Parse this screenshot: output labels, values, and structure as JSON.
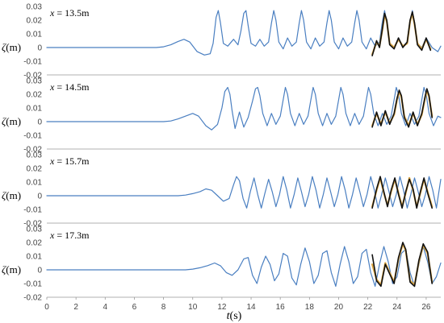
{
  "chart_data": {
    "type": "line",
    "xlabel_main": "t",
    "xlabel_unit": "(s)",
    "ylabel_main": "ζ",
    "ylabel_unit": "(m)",
    "xlim": [
      0,
      27
    ],
    "xticks": [
      0,
      2,
      4,
      6,
      8,
      10,
      12,
      14,
      16,
      18,
      20,
      22,
      24,
      26
    ],
    "xtick_labels": [
      "0",
      "2",
      "4",
      "6",
      "8",
      "10",
      "12",
      "14",
      "16",
      "18",
      "20",
      "22",
      "24",
      "26"
    ],
    "ylim": [
      -0.02,
      0.03
    ],
    "yticks": [
      -0.02,
      -0.01,
      0,
      0.01,
      0.02,
      0.03
    ],
    "ytick_labels": [
      "-0.02",
      "-0.01",
      "0",
      "0.01",
      "0.02",
      "0.03"
    ],
    "colors": {
      "simulation": "#4a7fc1",
      "overlay_light": "#d9a441",
      "overlay_dark": "#111111",
      "axis": "#999999"
    },
    "panels": [
      {
        "label_var": "x",
        "label_value": "= 13.5m",
        "series": [
          {
            "role": "simulation",
            "x": [
              0,
              7.5,
              8,
              8.5,
              9,
              9.4,
              9.8,
              10.3,
              10.8,
              11.2,
              11.4,
              11.6,
              11.75,
              11.9,
              12.1,
              12.4,
              12.8,
              13.1,
              13.3,
              13.5,
              13.65,
              13.8,
              14,
              14.3,
              14.6,
              14.9,
              15.2,
              15.4,
              15.55,
              15.7,
              15.9,
              16.2,
              16.5,
              16.8,
              17.1,
              17.3,
              17.45,
              17.6,
              17.8,
              18.1,
              18.4,
              18.7,
              19,
              19.2,
              19.35,
              19.5,
              19.7,
              20,
              20.3,
              20.6,
              20.9,
              21.1,
              21.25,
              21.4,
              21.6,
              21.9,
              22.2,
              22.5,
              22.8,
              23,
              23.15,
              23.3,
              23.5,
              23.8,
              24.1,
              24.4,
              24.7,
              24.9,
              25.05,
              25.2,
              25.4,
              25.7,
              26,
              26.4,
              26.8,
              27
            ],
            "y": [
              0,
              0,
              0.0005,
              0.002,
              0.0045,
              0.006,
              0.004,
              -0.003,
              -0.0055,
              -0.0045,
              0.003,
              0.022,
              0.027,
              0.018,
              0.003,
              0.001,
              0.006,
              0.002,
              0.012,
              0.025,
              0.027,
              0.016,
              0.003,
              0.001,
              0.006,
              0.001,
              0.004,
              0.018,
              0.027,
              0.02,
              0.004,
              -0.001,
              0.007,
              0.001,
              0.004,
              0.018,
              0.027,
              0.02,
              0.004,
              -0.001,
              0.007,
              0.001,
              0.004,
              0.018,
              0.027,
              0.02,
              0.004,
              -0.001,
              0.007,
              0.001,
              0.004,
              0.018,
              0.027,
              0.02,
              0.004,
              -0.001,
              0.007,
              0.001,
              0.004,
              0.019,
              0.027,
              0.018,
              0.003,
              0,
              0.007,
              0.001,
              0.004,
              0.019,
              0.027,
              0.018,
              0.003,
              0,
              0.007,
              0,
              -0.003,
              0.001
            ]
          },
          {
            "role": "overlay_light",
            "x": [
              22.3,
              22.6,
              22.8,
              23,
              23.15,
              23.3,
              23.5,
              23.8,
              24.1,
              24.4,
              24.7,
              24.9,
              25.05,
              25.2,
              25.4,
              25.7,
              26,
              26.3
            ],
            "y": [
              -0.005,
              0.004,
              0.001,
              0.013,
              0.024,
              0.019,
              0.003,
              0,
              0.006,
              0.001,
              0.003,
              0.019,
              0.025,
              0.017,
              0.003,
              -0.001,
              0.006,
              -0.001
            ]
          },
          {
            "role": "overlay_dark",
            "x": [
              22.3,
              22.6,
              22.8,
              23,
              23.15,
              23.3,
              23.5,
              23.8,
              24.1,
              24.4,
              24.7,
              24.9,
              25.05,
              25.2,
              25.4,
              25.7,
              26,
              26.3
            ],
            "y": [
              -0.006,
              0.005,
              0,
              0.014,
              0.025,
              0.02,
              0.002,
              -0.001,
              0.007,
              0,
              0.004,
              0.02,
              0.026,
              0.018,
              0.002,
              -0.002,
              0.007,
              -0.002
            ]
          }
        ]
      },
      {
        "label_var": "x",
        "label_value": "= 14.5m",
        "series": [
          {
            "role": "simulation",
            "x": [
              0,
              8,
              8.5,
              9,
              9.5,
              10,
              10.4,
              10.9,
              11.3,
              11.7,
              12,
              12.2,
              12.4,
              12.55,
              12.7,
              12.9,
              13.2,
              13.5,
              13.8,
              14.1,
              14.3,
              14.45,
              14.6,
              14.8,
              15.1,
              15.4,
              15.7,
              16,
              16.2,
              16.35,
              16.5,
              16.7,
              17,
              17.3,
              17.6,
              17.9,
              18.1,
              18.25,
              18.4,
              18.6,
              18.9,
              19.2,
              19.5,
              19.8,
              20,
              20.15,
              20.3,
              20.5,
              20.8,
              21.1,
              21.4,
              21.7,
              21.9,
              22.05,
              22.2,
              22.4,
              22.7,
              23,
              23.3,
              23.6,
              23.8,
              23.95,
              24.1,
              24.3,
              24.6,
              24.9,
              25.2,
              25.5,
              25.7,
              25.85,
              26,
              26.2,
              26.5,
              26.8,
              27
            ],
            "y": [
              0,
              0,
              0.0005,
              0.002,
              0.004,
              0.006,
              0.004,
              -0.003,
              -0.006,
              -0.002,
              0.01,
              0.022,
              0.025,
              0.02,
              0.008,
              -0.005,
              0.007,
              -0.004,
              0.003,
              0.015,
              0.024,
              0.025,
              0.019,
              0.006,
              -0.003,
              0.006,
              -0.002,
              0.004,
              0.016,
              0.025,
              0.02,
              0.006,
              -0.003,
              0.006,
              -0.002,
              0.004,
              0.016,
              0.025,
              0.02,
              0.006,
              -0.003,
              0.006,
              -0.002,
              0.004,
              0.016,
              0.025,
              0.02,
              0.006,
              -0.003,
              0.006,
              -0.002,
              0.004,
              0.016,
              0.025,
              0.02,
              0.006,
              -0.003,
              0.006,
              -0.002,
              0.004,
              0.016,
              0.025,
              0.02,
              0.006,
              -0.003,
              0.006,
              -0.002,
              0.004,
              0.016,
              0.025,
              0.02,
              0.006,
              -0.003,
              0.004,
              0.003
            ]
          },
          {
            "role": "overlay_light",
            "x": [
              22.3,
              22.6,
              22.9,
              23.2,
              23.5,
              23.8,
              24,
              24.15,
              24.3,
              24.5,
              24.8,
              25.1,
              25.4,
              25.7,
              25.9,
              26.05,
              26.2,
              26.4
            ],
            "y": [
              -0.003,
              0.006,
              -0.002,
              0.007,
              -0.001,
              0.005,
              0.016,
              0.022,
              0.018,
              0.004,
              -0.003,
              0.006,
              -0.002,
              0.005,
              0.016,
              0.023,
              0.018,
              0.004
            ]
          },
          {
            "role": "overlay_dark",
            "x": [
              22.3,
              22.6,
              22.9,
              23.2,
              23.5,
              23.8,
              24,
              24.15,
              24.3,
              24.5,
              24.8,
              25.1,
              25.4,
              25.7,
              25.9,
              26.05,
              26.2,
              26.4
            ],
            "y": [
              -0.004,
              0.007,
              -0.003,
              0.008,
              -0.002,
              0.006,
              0.017,
              0.023,
              0.019,
              0.003,
              -0.004,
              0.007,
              -0.003,
              0.006,
              0.017,
              0.024,
              0.019,
              0.003
            ]
          }
        ]
      },
      {
        "label_var": "x",
        "label_value": "= 15.7m",
        "series": [
          {
            "role": "simulation",
            "x": [
              0,
              9,
              9.5,
              10,
              10.5,
              10.9,
              11.3,
              11.7,
              12.1,
              12.5,
              12.8,
              13,
              13.2,
              13.45,
              13.7,
              13.95,
              14.2,
              14.45,
              14.7,
              14.95,
              15.2,
              15.45,
              15.7,
              15.95,
              16.2,
              16.45,
              16.7,
              16.95,
              17.2,
              17.45,
              17.7,
              17.95,
              18.2,
              18.45,
              18.7,
              18.95,
              19.2,
              19.45,
              19.7,
              19.95,
              20.2,
              20.45,
              20.7,
              20.95,
              21.2,
              21.45,
              21.7,
              21.95,
              22.2,
              22.45,
              22.7,
              22.95,
              23.2,
              23.45,
              23.7,
              23.95,
              24.2,
              24.45,
              24.7,
              24.95,
              25.2,
              25.45,
              25.7,
              25.95,
              26.2,
              26.45,
              26.7,
              27
            ],
            "y": [
              0,
              0,
              0.0005,
              0.0015,
              0.003,
              0.005,
              0.004,
              0,
              -0.004,
              -0.002,
              0.008,
              0.014,
              0.011,
              -0.002,
              -0.009,
              0.003,
              0.013,
              0.001,
              -0.009,
              0.002,
              0.012,
              0.003,
              -0.008,
              0.001,
              0.014,
              0.004,
              -0.009,
              0.001,
              0.013,
              0.003,
              -0.008,
              0.001,
              0.014,
              0.004,
              -0.009,
              0.001,
              0.013,
              0.003,
              -0.008,
              0.001,
              0.014,
              0.004,
              -0.009,
              0.001,
              0.013,
              0.003,
              -0.008,
              0.001,
              0.014,
              0.004,
              -0.009,
              0.001,
              0.013,
              0.003,
              -0.008,
              0.001,
              0.014,
              0.004,
              -0.009,
              0.001,
              0.013,
              0.003,
              -0.008,
              0.001,
              0.014,
              0.004,
              -0.009,
              0.012
            ]
          },
          {
            "role": "overlay_light",
            "x": [
              22.3,
              22.6,
              22.85,
              23.1,
              23.35,
              23.6,
              23.85,
              24.1,
              24.35,
              24.6,
              24.85,
              25.1,
              25.35,
              25.6,
              25.85,
              26.1,
              26.4
            ],
            "y": [
              -0.008,
              0.004,
              0.013,
              0.002,
              -0.007,
              0.003,
              0.012,
              0.002,
              -0.008,
              0.002,
              0.013,
              0.004,
              -0.008,
              0.002,
              0.012,
              0.003,
              -0.008
            ]
          },
          {
            "role": "overlay_dark",
            "x": [
              22.3,
              22.6,
              22.85,
              23.1,
              23.35,
              23.6,
              23.85,
              24.1,
              24.35,
              24.6,
              24.85,
              25.1,
              25.35,
              25.6,
              25.85,
              26.1,
              26.4
            ],
            "y": [
              -0.009,
              0.005,
              0.014,
              0.003,
              -0.008,
              0.004,
              0.013,
              0.001,
              -0.009,
              0.003,
              0.012,
              0.005,
              -0.009,
              0.003,
              0.013,
              0.002,
              -0.009
            ]
          }
        ]
      },
      {
        "label_var": "x",
        "label_value": "= 17.3m",
        "series": [
          {
            "role": "simulation",
            "x": [
              0,
              9.5,
              10,
              10.5,
              11,
              11.5,
              11.9,
              12.3,
              12.7,
              13.1,
              13.5,
              13.8,
              14.1,
              14.4,
              14.7,
              15,
              15.3,
              15.6,
              15.9,
              16.2,
              16.5,
              16.8,
              17.1,
              17.4,
              17.7,
              18,
              18.3,
              18.6,
              18.9,
              19.2,
              19.5,
              19.8,
              20.1,
              20.4,
              20.7,
              21,
              21.3,
              21.6,
              21.9,
              22.2,
              22.5,
              22.8,
              23.1,
              23.4,
              23.7,
              24,
              24.3,
              24.6,
              24.9,
              25.2,
              25.5,
              25.8,
              26.1,
              26.4,
              26.7,
              27
            ],
            "y": [
              0,
              0,
              0.0005,
              0.0015,
              0.003,
              0.005,
              0.003,
              -0.002,
              -0.004,
              0,
              0.008,
              0.009,
              -0.004,
              -0.01,
              0.002,
              0.01,
              0.004,
              -0.008,
              -0.003,
              0.012,
              0.01,
              -0.006,
              -0.011,
              0.004,
              0.016,
              0.006,
              -0.01,
              -0.004,
              0.012,
              0.014,
              -0.002,
              -0.012,
              0.004,
              0.017,
              0.006,
              -0.01,
              -0.005,
              0.012,
              0.015,
              -0.002,
              -0.012,
              0.004,
              0.017,
              0.006,
              -0.01,
              -0.005,
              0.012,
              0.015,
              -0.002,
              -0.012,
              0.004,
              0.017,
              0.006,
              -0.01,
              -0.005,
              0.005
            ]
          },
          {
            "role": "overlay_light",
            "x": [
              22.3,
              22.6,
              22.9,
              23.2,
              23.5,
              23.8,
              24.1,
              24.4,
              24.6,
              24.9,
              25.2,
              25.5,
              25.8,
              26.1,
              26.4
            ],
            "y": [
              0.004,
              -0.007,
              -0.011,
              0.005,
              -0.002,
              -0.009,
              0.008,
              0.019,
              0.014,
              -0.008,
              -0.011,
              0.006,
              0.018,
              0.012,
              -0.009
            ]
          },
          {
            "role": "overlay_dark",
            "x": [
              22.3,
              22.6,
              22.9,
              23.2,
              23.5,
              23.8,
              24.1,
              24.4,
              24.6,
              24.9,
              25.2,
              25.5,
              25.8,
              26.1,
              26.4
            ],
            "y": [
              0.011,
              -0.008,
              -0.012,
              0.004,
              -0.003,
              -0.01,
              0.009,
              0.02,
              0.015,
              -0.009,
              -0.012,
              0.007,
              0.019,
              0.013,
              -0.01
            ]
          }
        ]
      }
    ]
  }
}
